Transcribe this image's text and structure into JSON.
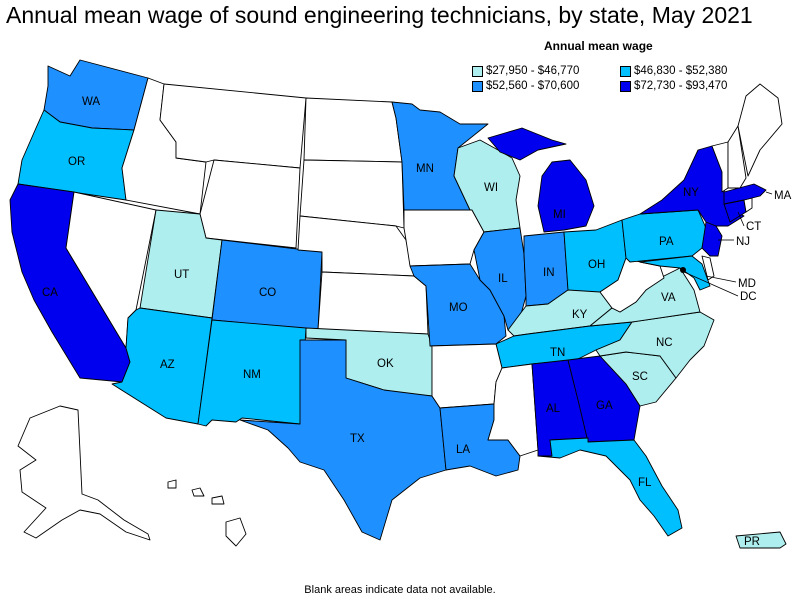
{
  "title": "Annual mean wage of sound engineering technicians, by state, May 2021",
  "legend": {
    "title": "Annual mean wage",
    "bins": [
      {
        "label": "$27,950 - $46,770",
        "color": "#aeeeee"
      },
      {
        "label": "$46,830 - $52,380",
        "color": "#00bfff"
      },
      {
        "label": "$52,560 - $70,600",
        "color": "#1e90ff"
      },
      {
        "label": "$72,730 - $93,470",
        "color": "#0000ee"
      }
    ]
  },
  "colors": {
    "no_data": "#ffffff",
    "border": "#000000"
  },
  "state_labels": {
    "WA": "WA",
    "OR": "OR",
    "CA": "CA",
    "UT": "UT",
    "CO": "CO",
    "AZ": "AZ",
    "NM": "NM",
    "TX": "TX",
    "OK": "OK",
    "MN": "MN",
    "WI": "WI",
    "MI": "MI",
    "IL": "IL",
    "IN": "IN",
    "OH": "OH",
    "MO": "MO",
    "KY": "KY",
    "TN": "TN",
    "LA": "LA",
    "AL": "AL",
    "GA": "GA",
    "FL": "FL",
    "SC": "SC",
    "NC": "NC",
    "VA": "VA",
    "PA": "PA",
    "NY": "NY",
    "MA": "MA",
    "CT": "CT",
    "NJ": "NJ",
    "MD": "MD",
    "DC": "DC",
    "PR": "PR"
  },
  "footnote": "Blank areas indicate data not available."
}
